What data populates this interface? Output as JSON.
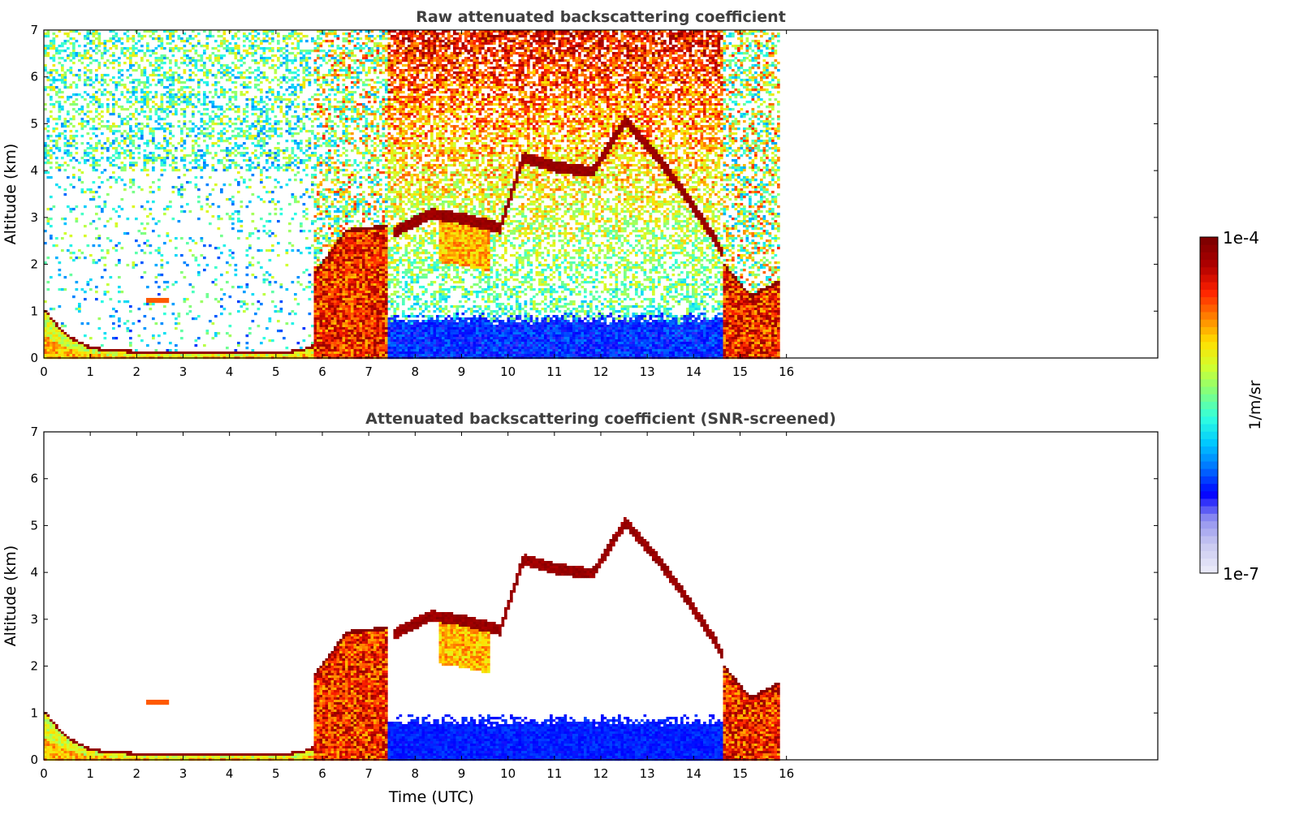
{
  "chart_data": [
    {
      "type": "heatmap",
      "title": "Raw attenuated backscattering coefficient",
      "xlabel": "",
      "ylabel": "Altitude (km)",
      "xlim": [
        0,
        24
      ],
      "ylim": [
        0,
        7
      ],
      "xticks": [
        0,
        1,
        2,
        3,
        4,
        5,
        6,
        7,
        8,
        9,
        10,
        11,
        12,
        13,
        14,
        15,
        16
      ],
      "yticks": [
        0,
        1,
        2,
        3,
        4,
        5,
        6,
        7
      ],
      "data_extent_hours": [
        0,
        15.8
      ],
      "features": [
        {
          "name": "nocturnal boundary layer top",
          "x": [
            0,
            0.2,
            0.5,
            1,
            2,
            3,
            4,
            5,
            5.5,
            5.8
          ],
          "y": [
            1.0,
            0.75,
            0.45,
            0.2,
            0.12,
            0.12,
            0.1,
            0.1,
            0.15,
            0.25
          ]
        },
        {
          "name": "elevated aerosol layer",
          "x": [
            2.2,
            2.6
          ],
          "y": [
            1.28,
            1.25
          ]
        },
        {
          "name": "mid-level cloud layer",
          "x": [
            7.5,
            8.3,
            9,
            9.8,
            10.3,
            11,
            11.8,
            12.5,
            13.2,
            13.8,
            14.4,
            14.8,
            15.3,
            15.6
          ],
          "y": [
            2.7,
            3.1,
            3.0,
            2.8,
            4.3,
            4.1,
            4.0,
            5.1,
            4.3,
            3.5,
            2.6,
            1.9,
            1.2,
            1.0
          ]
        },
        {
          "name": "daytime mixed layer (strong signal)",
          "x": [
            5.9,
            6.6,
            7.3,
            14.7,
            15.8
          ],
          "y": [
            1.8,
            2.7,
            2.8,
            2.0,
            1.6
          ]
        }
      ]
    },
    {
      "type": "heatmap",
      "title": "Attenuated backscattering coefficient (SNR-screened)",
      "xlabel": "Time (UTC)",
      "ylabel": "Altitude (km)",
      "xlim": [
        0,
        24
      ],
      "ylim": [
        0,
        7
      ],
      "xticks": [
        0,
        1,
        2,
        3,
        4,
        5,
        6,
        7,
        8,
        9,
        10,
        11,
        12,
        13,
        14,
        15,
        16
      ],
      "yticks": [
        0,
        1,
        2,
        3,
        4,
        5,
        6,
        7
      ],
      "data_extent_hours": [
        0,
        15.8
      ]
    }
  ],
  "colorbar": {
    "min_label": "1e-7",
    "max_label": "1e-4",
    "unit": "1/m/sr",
    "scale": "log",
    "range": [
      1e-07,
      0.0001
    ],
    "colors": [
      "#e8e8f8",
      "#c8c8f0",
      "#9090f0",
      "#0000ff",
      "#0070ff",
      "#00c8ff",
      "#30ffe0",
      "#80ff80",
      "#d0ff30",
      "#ffe000",
      "#ff8000",
      "#ff2000",
      "#b00000",
      "#800000"
    ]
  }
}
